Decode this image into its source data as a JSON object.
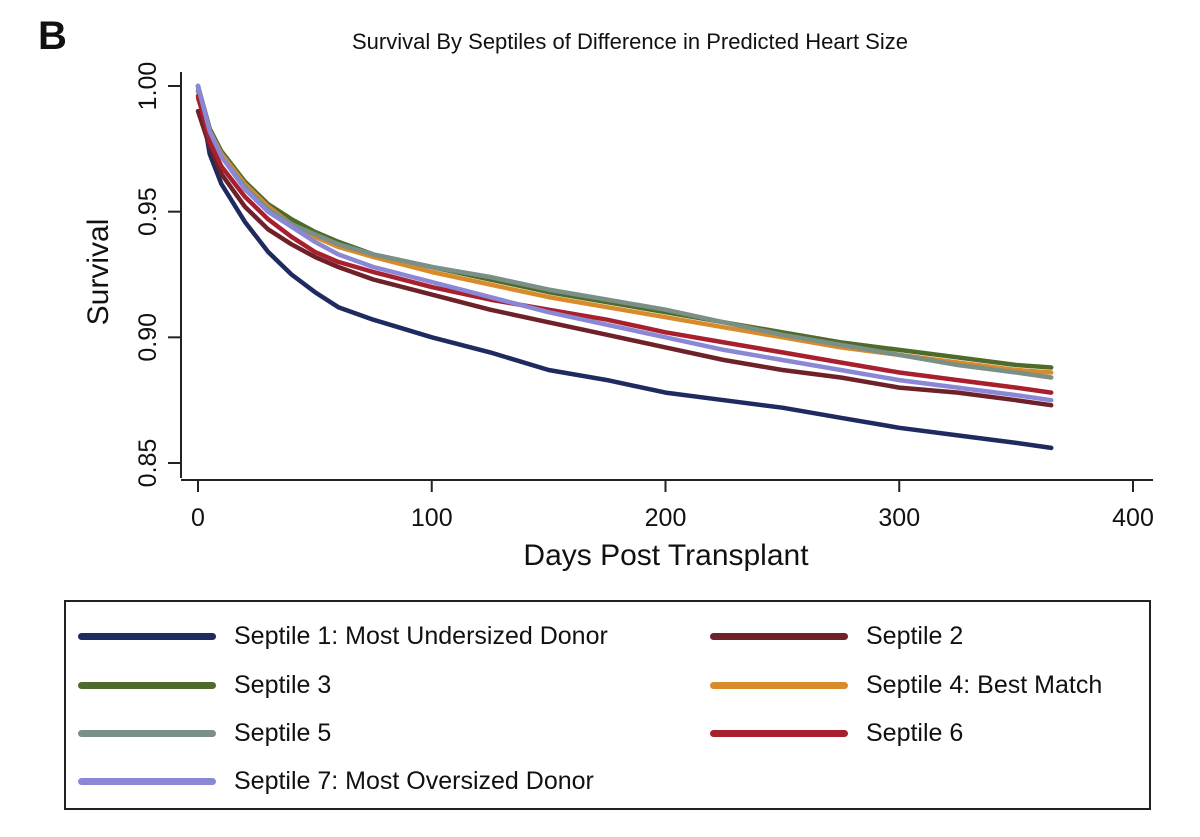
{
  "panel_label": "B",
  "chart_data": {
    "type": "line",
    "title": "Survival By Septiles of Difference in Predicted Heart Size",
    "xlabel": "Days Post Transplant",
    "ylabel": "Survival",
    "xlim": [
      0,
      400
    ],
    "ylim": [
      0.85,
      1.0
    ],
    "x_ticks": [
      "0",
      "100",
      "200",
      "300",
      "400"
    ],
    "y_ticks": [
      "0.85",
      "0.90",
      "0.95",
      "1.00"
    ],
    "grid": false,
    "legend_position": "bottom",
    "x": [
      0,
      5,
      10,
      20,
      30,
      40,
      50,
      60,
      75,
      100,
      125,
      150,
      175,
      200,
      225,
      250,
      275,
      300,
      325,
      350,
      365
    ],
    "series": [
      {
        "name": "Septile 1: Most Undersized Donor",
        "color": "#1f2a5e",
        "values": [
          1.0,
          0.973,
          0.961,
          0.946,
          0.934,
          0.925,
          0.918,
          0.912,
          0.907,
          0.9,
          0.894,
          0.887,
          0.883,
          0.878,
          0.875,
          0.872,
          0.868,
          0.864,
          0.861,
          0.858,
          0.856
        ]
      },
      {
        "name": "Septile 2",
        "color": "#6e2128",
        "values": [
          0.99,
          0.976,
          0.965,
          0.952,
          0.943,
          0.937,
          0.932,
          0.928,
          0.923,
          0.917,
          0.911,
          0.906,
          0.901,
          0.896,
          0.891,
          0.887,
          0.884,
          0.88,
          0.878,
          0.875,
          0.873
        ]
      },
      {
        "name": "Septile 3",
        "color": "#4e6b2b",
        "values": [
          1.0,
          0.983,
          0.974,
          0.962,
          0.953,
          0.947,
          0.942,
          0.938,
          0.933,
          0.928,
          0.923,
          0.918,
          0.914,
          0.91,
          0.906,
          0.902,
          0.898,
          0.895,
          0.892,
          0.889,
          0.888
        ]
      },
      {
        "name": "Septile 4: Best Match",
        "color": "#d98a2b",
        "values": [
          0.995,
          0.982,
          0.973,
          0.961,
          0.952,
          0.945,
          0.94,
          0.936,
          0.932,
          0.926,
          0.921,
          0.916,
          0.912,
          0.908,
          0.904,
          0.9,
          0.896,
          0.893,
          0.89,
          0.887,
          0.886
        ]
      },
      {
        "name": "Septile 5",
        "color": "#7a8f85",
        "values": [
          0.998,
          0.982,
          0.972,
          0.96,
          0.951,
          0.945,
          0.941,
          0.937,
          0.933,
          0.928,
          0.924,
          0.919,
          0.915,
          0.911,
          0.906,
          0.901,
          0.897,
          0.893,
          0.889,
          0.886,
          0.884
        ]
      },
      {
        "name": "Septile 6",
        "color": "#a8202e",
        "values": [
          0.996,
          0.978,
          0.968,
          0.956,
          0.947,
          0.94,
          0.934,
          0.93,
          0.926,
          0.92,
          0.915,
          0.911,
          0.907,
          0.902,
          0.898,
          0.894,
          0.89,
          0.886,
          0.883,
          0.88,
          0.878
        ]
      },
      {
        "name": "Septile 7: Most Oversized Donor",
        "color": "#8a87d6",
        "values": [
          1.0,
          0.982,
          0.972,
          0.959,
          0.95,
          0.944,
          0.938,
          0.933,
          0.928,
          0.922,
          0.916,
          0.91,
          0.905,
          0.9,
          0.895,
          0.891,
          0.887,
          0.883,
          0.88,
          0.877,
          0.875
        ]
      }
    ]
  }
}
